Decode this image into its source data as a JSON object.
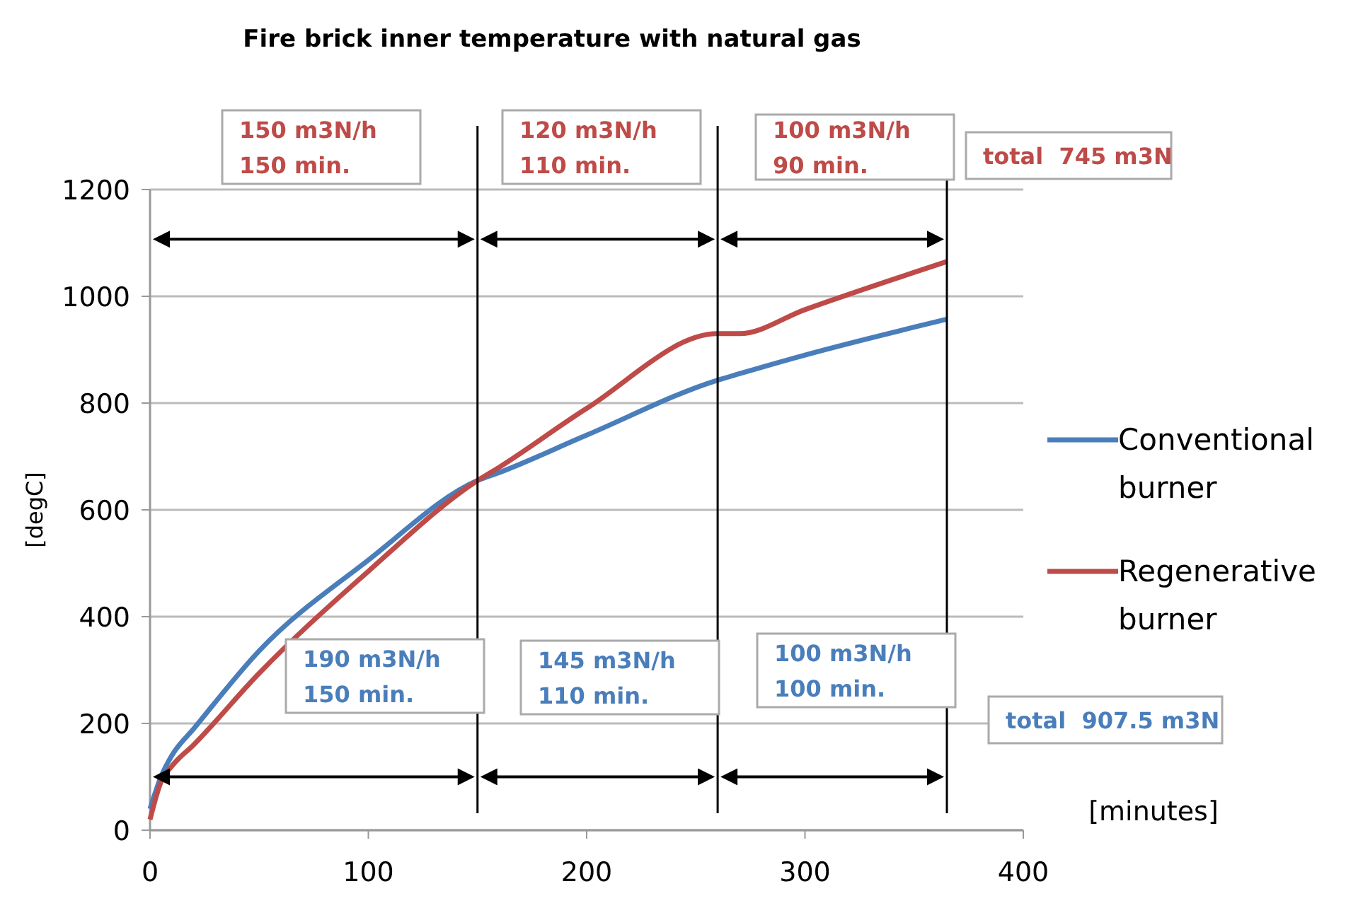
{
  "chart_data": {
    "type": "line",
    "title": "Fire brick inner temperature with natural gas",
    "xlabel": "[minutes]",
    "ylabel": "[degC]",
    "xlim": [
      0,
      400
    ],
    "xticks": [
      0,
      100,
      200,
      300,
      400
    ],
    "ylim": [
      0,
      1200
    ],
    "yticks": [
      0,
      200,
      400,
      600,
      800,
      1000,
      1200
    ],
    "grid": "y",
    "legend": "right",
    "marker": "none",
    "line_style": "solid",
    "series": [
      {
        "name": "Conventional burner",
        "color": "#4a7ebb",
        "x": [
          0,
          5,
          10,
          20,
          50,
          100,
          150,
          160,
          200,
          260,
          270,
          300,
          365
        ],
        "values": [
          40,
          100,
          140,
          190,
          336,
          506,
          655,
          670,
          740,
          843,
          855,
          890,
          957
        ]
      },
      {
        "name": "Regenerative burner",
        "color": "#be4b48",
        "x": [
          0,
          5,
          10,
          20,
          50,
          100,
          150,
          160,
          200,
          260,
          270,
          300,
          365
        ],
        "values": [
          20,
          90,
          120,
          160,
          294,
          485,
          655,
          680,
          790,
          930,
          930,
          975,
          1065
        ]
      }
    ],
    "ref_lines": [
      {
        "axis": "x",
        "value": 150,
        "color": "#000000"
      },
      {
        "axis": "x",
        "value": 260,
        "color": "#000000"
      },
      {
        "axis": "x",
        "value": 365,
        "color": "#000000"
      }
    ],
    "annotations": [
      "150 m3N/h\n150 min.",
      "120 m3N/h\n110 min.",
      "100 m3N/h\n90 min.",
      "total  745 m3N",
      "190 m3N/h\n150 min.",
      "145 m3N/h\n110 min.",
      "100 m3N/h\n100 min.",
      "total  907.5 m3N"
    ]
  }
}
